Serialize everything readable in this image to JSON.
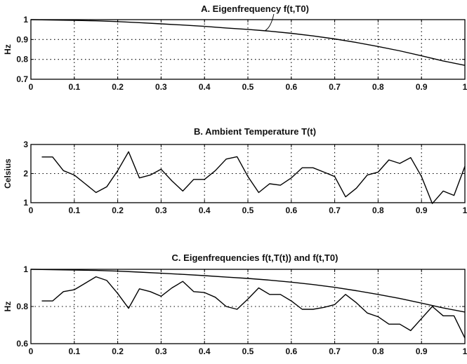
{
  "chart_data": [
    {
      "type": "line",
      "title": "A. Eigenfrequency f(t,T0)",
      "xlabel": "",
      "ylabel": "Hz",
      "xlim": [
        0,
        1
      ],
      "ylim": [
        0.7,
        1
      ],
      "xticks": [
        0,
        0.1,
        0.2,
        0.3,
        0.4,
        0.5,
        0.6,
        0.7,
        0.8,
        0.9,
        1
      ],
      "yticks": [
        0.7,
        0.8,
        0.9,
        1
      ],
      "grid": true,
      "annotation_on_curve": true,
      "series": [
        {
          "x": [
            0,
            0.05,
            0.1,
            0.15,
            0.2,
            0.25,
            0.3,
            0.35,
            0.4,
            0.45,
            0.5,
            0.55,
            0.6,
            0.65,
            0.7,
            0.75,
            0.8,
            0.85,
            0.9,
            0.95,
            1.0
          ],
          "values": [
            1.0,
            0.998,
            0.996,
            0.994,
            0.99,
            0.985,
            0.979,
            0.973,
            0.966,
            0.958,
            0.951,
            0.942,
            0.931,
            0.918,
            0.903,
            0.885,
            0.865,
            0.843,
            0.818,
            0.792,
            0.77
          ]
        }
      ]
    },
    {
      "type": "line",
      "title": "B. Ambient Temperature T(t)",
      "xlabel": "",
      "ylabel": "Celsius",
      "xlim": [
        0,
        1
      ],
      "ylim": [
        1,
        3
      ],
      "xticks": [
        0,
        0.1,
        0.2,
        0.3,
        0.4,
        0.5,
        0.6,
        0.7,
        0.8,
        0.9,
        1
      ],
      "yticks": [
        1,
        2,
        3
      ],
      "grid": true,
      "series": [
        {
          "x": [
            0.025,
            0.05,
            0.075,
            0.1,
            0.125,
            0.15,
            0.175,
            0.2,
            0.225,
            0.25,
            0.275,
            0.3,
            0.325,
            0.35,
            0.375,
            0.4,
            0.425,
            0.45,
            0.475,
            0.5,
            0.525,
            0.55,
            0.575,
            0.6,
            0.625,
            0.65,
            0.675,
            0.7,
            0.725,
            0.75,
            0.775,
            0.8,
            0.825,
            0.85,
            0.875,
            0.9,
            0.925,
            0.95,
            0.975,
            1.0
          ],
          "values": [
            2.57,
            2.57,
            2.1,
            1.95,
            1.65,
            1.35,
            1.55,
            2.1,
            2.75,
            1.85,
            1.95,
            2.15,
            1.75,
            1.4,
            1.8,
            1.8,
            2.1,
            2.5,
            2.58,
            1.9,
            1.35,
            1.65,
            1.6,
            1.85,
            2.2,
            2.2,
            2.05,
            1.9,
            1.2,
            1.5,
            1.95,
            2.05,
            2.47,
            2.35,
            2.55,
            1.9,
            0.97,
            1.4,
            1.25,
            2.25
          ]
        }
      ]
    },
    {
      "type": "line",
      "title": "C. Eigenfrequencies f(t,T(t)) and f(t,T0)",
      "xlabel": "",
      "ylabel": "Hz",
      "xlim": [
        0,
        1
      ],
      "ylim": [
        0.6,
        1
      ],
      "xticks": [
        0,
        0.1,
        0.2,
        0.3,
        0.4,
        0.5,
        0.6,
        0.7,
        0.8,
        0.9,
        1
      ],
      "yticks": [
        0.6,
        0.8,
        1
      ],
      "grid": true,
      "series": [
        {
          "x": [
            0,
            0.05,
            0.1,
            0.15,
            0.2,
            0.25,
            0.3,
            0.35,
            0.4,
            0.45,
            0.5,
            0.55,
            0.6,
            0.65,
            0.7,
            0.75,
            0.8,
            0.85,
            0.9,
            0.95,
            1.0
          ],
          "values": [
            1.0,
            0.998,
            0.996,
            0.994,
            0.99,
            0.985,
            0.979,
            0.973,
            0.966,
            0.958,
            0.951,
            0.942,
            0.931,
            0.918,
            0.903,
            0.885,
            0.865,
            0.843,
            0.818,
            0.792,
            0.77
          ]
        },
        {
          "x": [
            0.025,
            0.05,
            0.075,
            0.1,
            0.125,
            0.15,
            0.175,
            0.2,
            0.225,
            0.25,
            0.275,
            0.3,
            0.325,
            0.35,
            0.375,
            0.4,
            0.425,
            0.45,
            0.475,
            0.5,
            0.525,
            0.55,
            0.575,
            0.6,
            0.625,
            0.65,
            0.675,
            0.7,
            0.725,
            0.75,
            0.775,
            0.8,
            0.825,
            0.85,
            0.875,
            0.9,
            0.925,
            0.95,
            0.975,
            1.0
          ],
          "values": [
            0.83,
            0.83,
            0.88,
            0.89,
            0.925,
            0.96,
            0.94,
            0.87,
            0.79,
            0.895,
            0.88,
            0.855,
            0.9,
            0.935,
            0.88,
            0.875,
            0.85,
            0.8,
            0.785,
            0.84,
            0.9,
            0.865,
            0.865,
            0.83,
            0.785,
            0.785,
            0.795,
            0.81,
            0.865,
            0.82,
            0.765,
            0.745,
            0.705,
            0.705,
            0.67,
            0.735,
            0.8,
            0.75,
            0.75,
            0.63
          ]
        }
      ]
    }
  ]
}
